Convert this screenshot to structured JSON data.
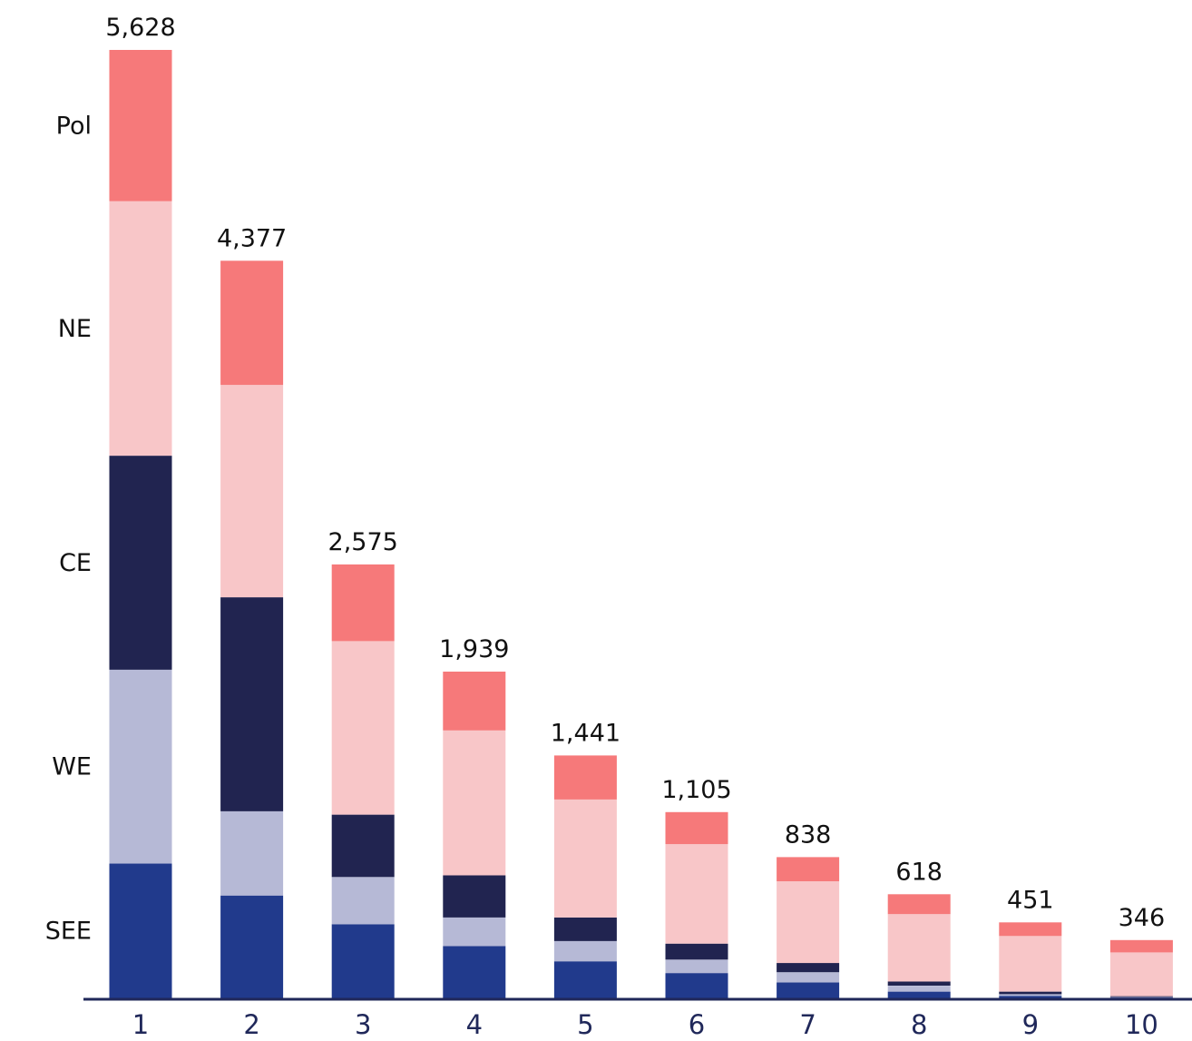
{
  "chart_data": {
    "type": "bar",
    "stacked": true,
    "categories": [
      "1",
      "2",
      "3",
      "4",
      "5",
      "6",
      "7",
      "8",
      "9",
      "10"
    ],
    "totals": [
      5628,
      4377,
      2575,
      1939,
      1441,
      1105,
      838,
      618,
      451,
      346
    ],
    "total_labels": [
      "5,628",
      "4,377",
      "2,575",
      "1,939",
      "1,441",
      "1,105",
      "838",
      "618",
      "451",
      "346"
    ],
    "series": [
      {
        "name": "SEE",
        "color": "#213a8c",
        "values": [
          800,
          610,
          440,
          310,
          220,
          150,
          95,
          40,
          15,
          5
        ]
      },
      {
        "name": "WE",
        "color": "#b6b9d6",
        "values": [
          1150,
          500,
          280,
          170,
          120,
          80,
          60,
          35,
          10,
          3
        ]
      },
      {
        "name": "CE",
        "color": "#212450",
        "values": [
          1270,
          1270,
          370,
          250,
          140,
          95,
          55,
          25,
          15,
          5
        ]
      },
      {
        "name": "NE",
        "color": "#f8c6c8",
        "values": [
          1510,
          1260,
          1030,
          860,
          700,
          590,
          485,
          400,
          330,
          260
        ]
      },
      {
        "name": "Pol",
        "color": "#f6797a",
        "values": [
          898,
          737,
          455,
          349,
          261,
          190,
          143,
          118,
          81,
          73
        ]
      }
    ],
    "legend_placement": "left, aligned with segments of bar 1",
    "ylim": [
      0,
      5628
    ],
    "grid": false,
    "axis_color": "#20285a"
  }
}
